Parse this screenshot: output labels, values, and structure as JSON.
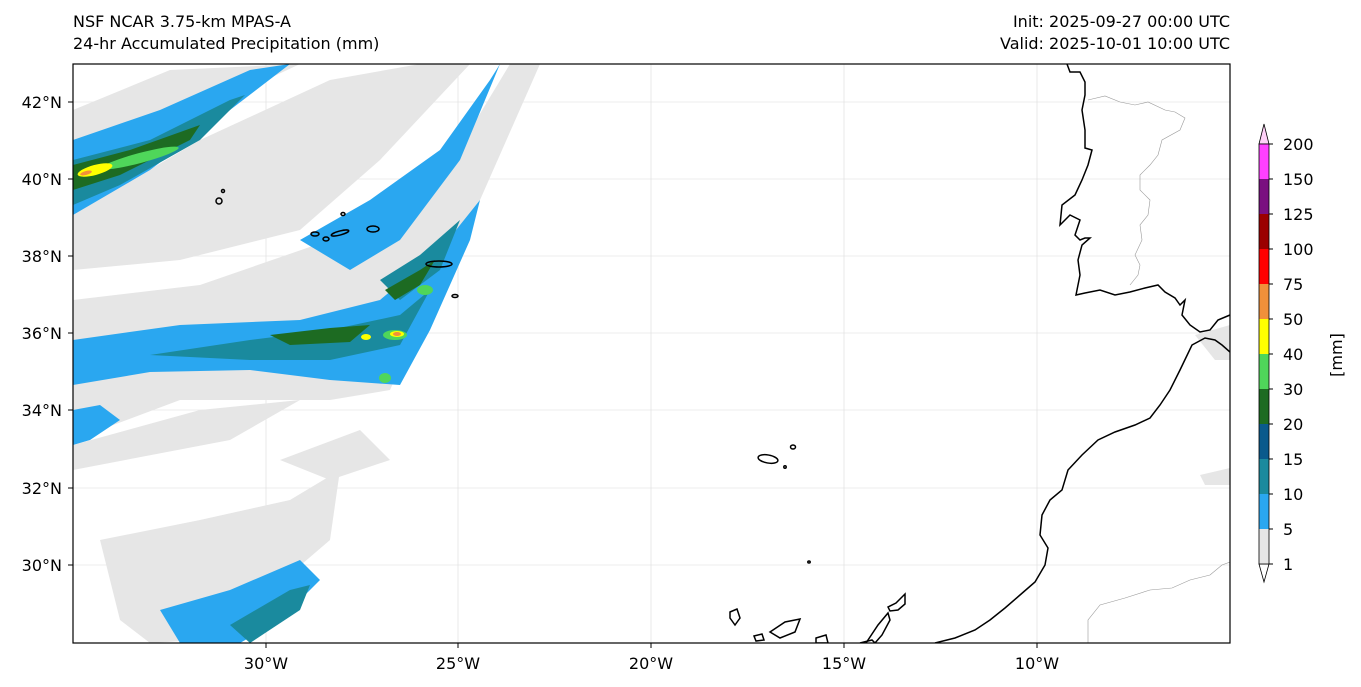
{
  "header": {
    "model": "NSF NCAR 3.75-km MPAS-A",
    "field": "24-hr Accumulated Precipitation (mm)",
    "init": "Init: 2025-09-27 00:00 UTC",
    "valid": "Valid: 2025-10-01 10:00 UTC"
  },
  "map": {
    "lat_labels": [
      "42°N",
      "40°N",
      "38°N",
      "36°N",
      "34°N",
      "32°N",
      "30°N"
    ],
    "lon_labels": [
      "30°W",
      "25°W",
      "20°W",
      "15°W",
      "10°W"
    ]
  },
  "colorbar": {
    "unit_label": "[mm]",
    "levels": [
      "1",
      "5",
      "10",
      "15",
      "20",
      "30",
      "40",
      "50",
      "75",
      "100",
      "125",
      "150",
      "200"
    ],
    "colors": [
      "#e6e6e6",
      "#2aa7f0",
      "#1a8a9e",
      "#0a5a8c",
      "#1d6b22",
      "#4fd65a",
      "#ffff00",
      "#f0903a",
      "#ff0000",
      "#9b0000",
      "#7a1080",
      "#ff40ff"
    ]
  }
}
